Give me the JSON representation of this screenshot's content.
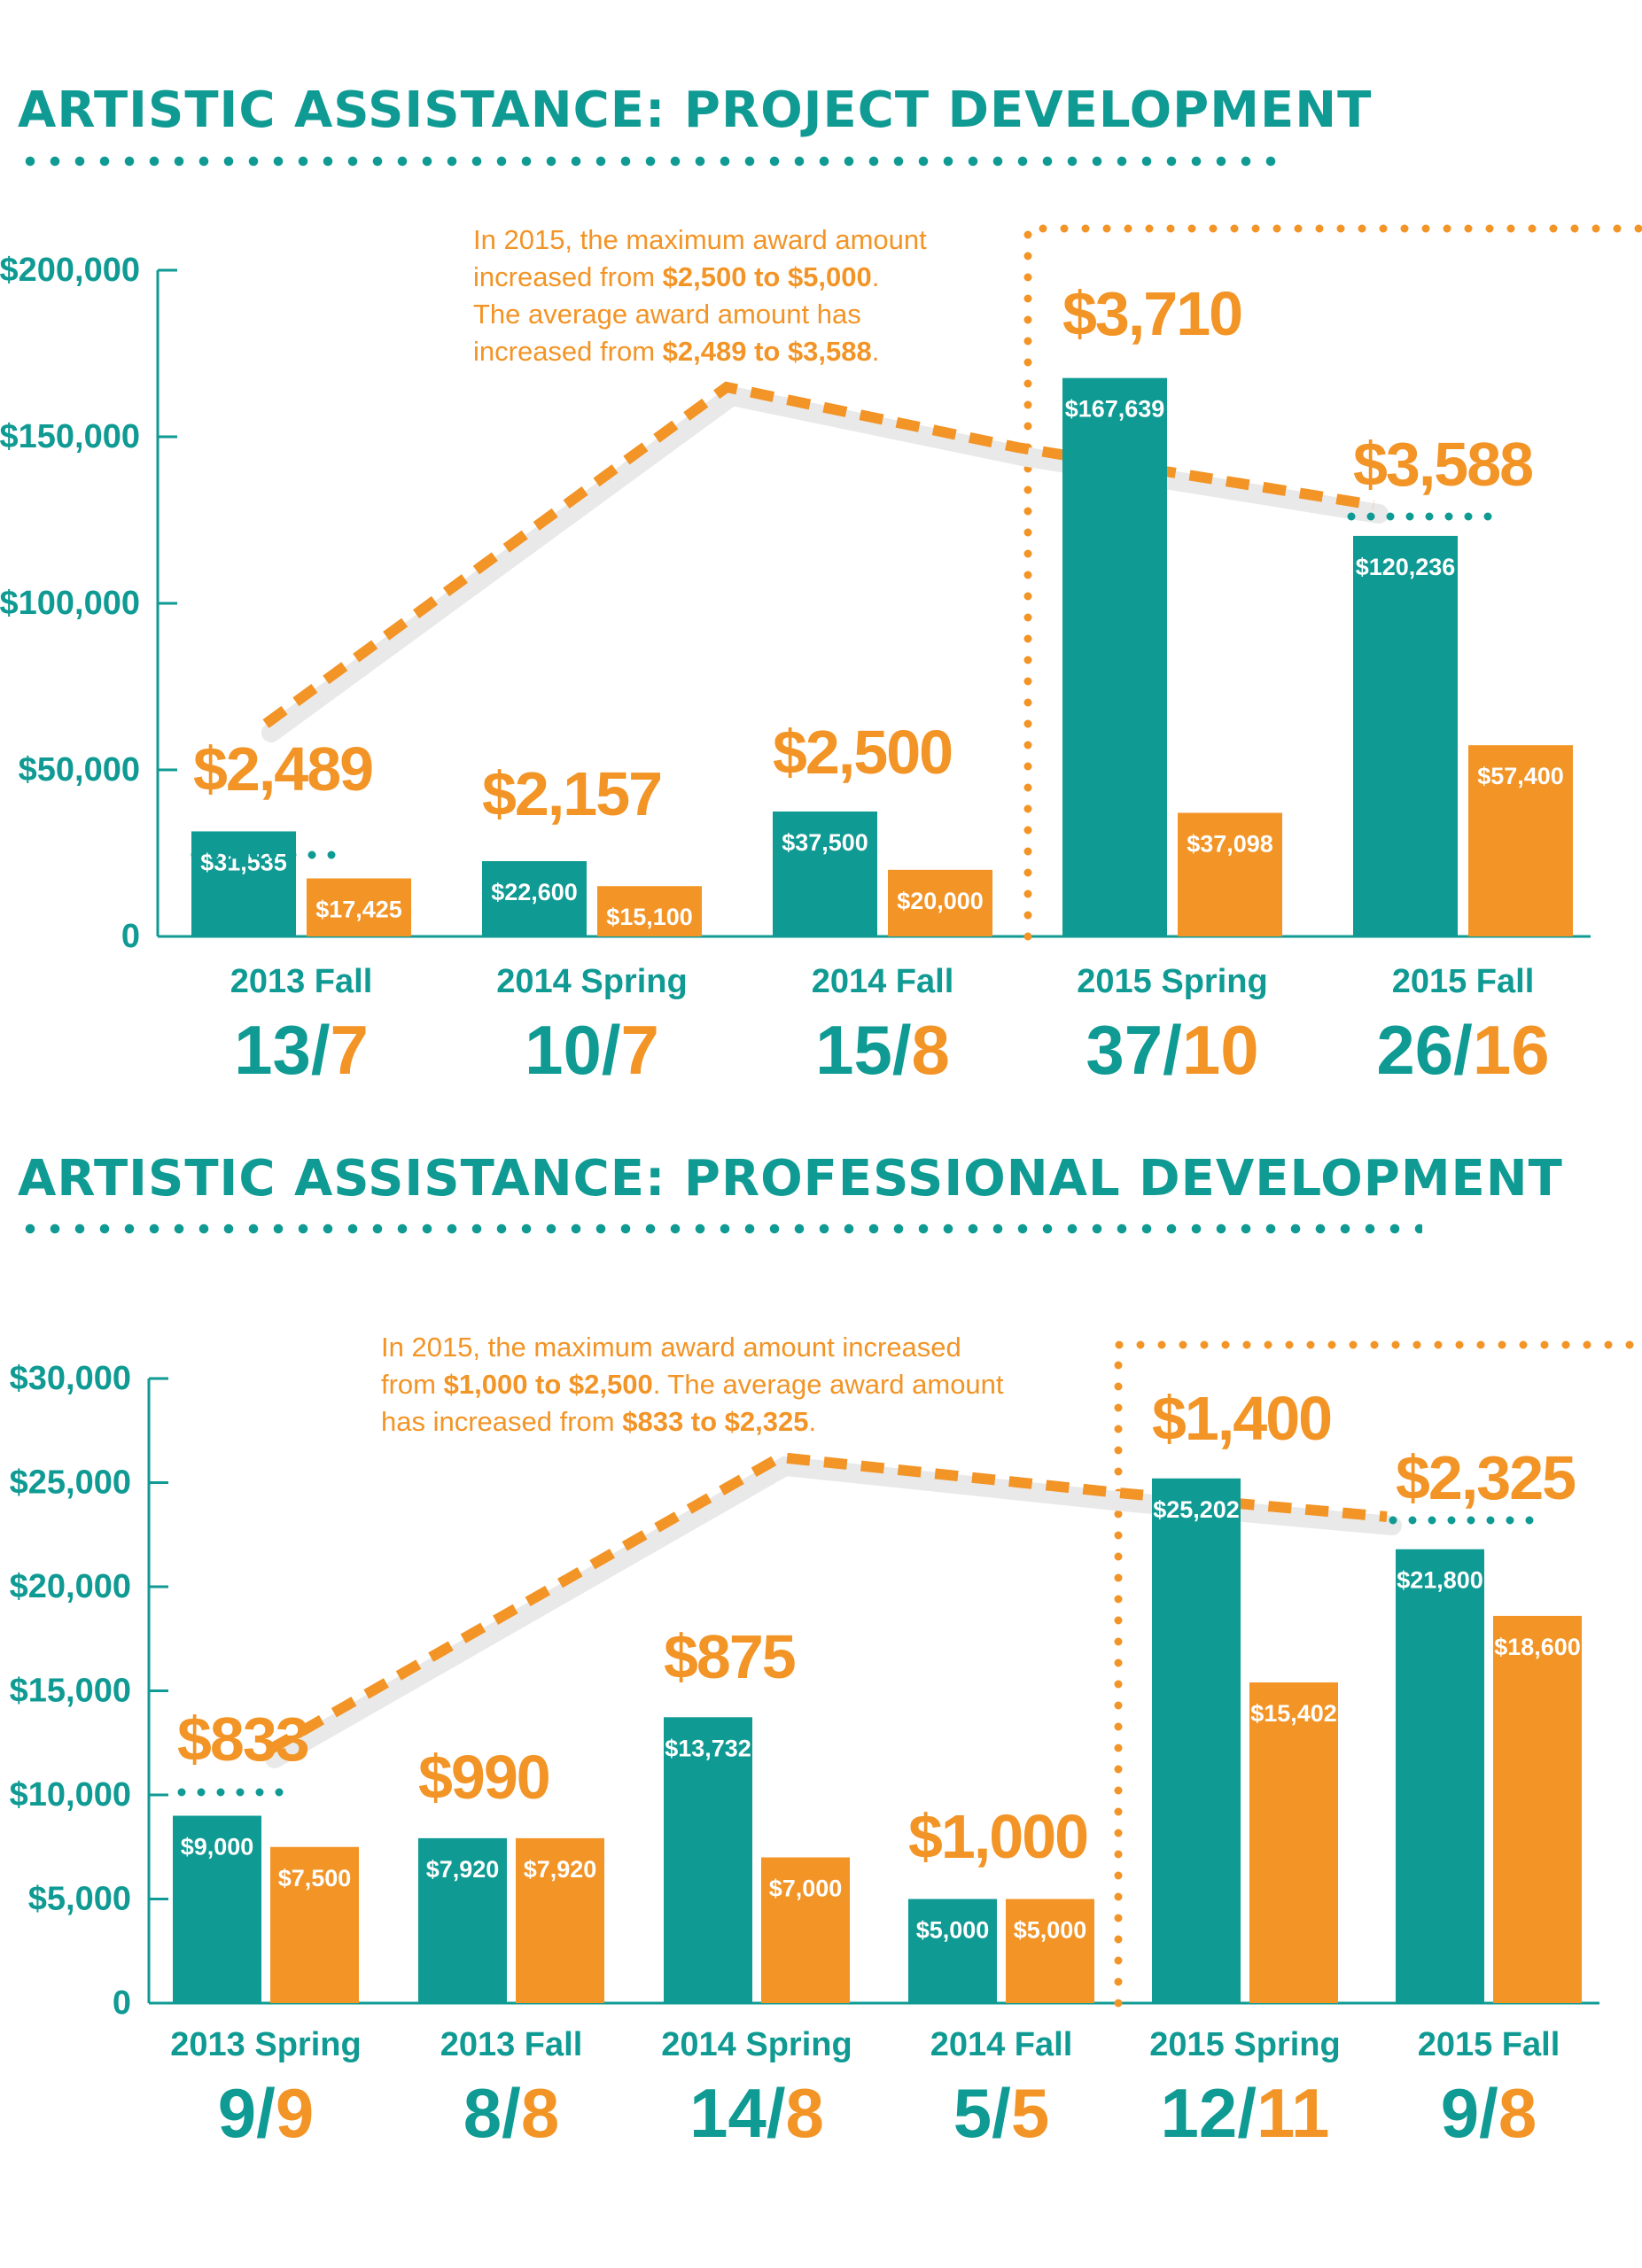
{
  "colors": {
    "teal": "#0f9a93",
    "orange": "#f29426"
  },
  "chart_data": [
    {
      "type": "bar",
      "title": "ARTISTIC ASSISTANCE: PROJECT DEVELOPMENT",
      "ylim": [
        0,
        200000
      ],
      "ytick_values": [
        0,
        50000,
        100000,
        150000,
        200000
      ],
      "ytick_labels": [
        "0",
        "$50,000",
        "$100,000",
        "$150,000",
        "$200,000"
      ],
      "categories": [
        "2013 Fall",
        "2014 Spring",
        "2014 Fall",
        "2015 Spring",
        "2015 Fall"
      ],
      "series": [
        {
          "values": [
            31535,
            22600,
            37500,
            167639,
            120236
          ],
          "labels": [
            "$31,535",
            "$22,600",
            "$37,500",
            "$167,639",
            "$120,236"
          ]
        },
        {
          "values": [
            17425,
            15100,
            20000,
            37098,
            57400
          ],
          "labels": [
            "$17,425",
            "$15,100",
            "$20,000",
            "$37,098",
            "$57,400"
          ]
        }
      ],
      "avg_awards": [
        "$2,489",
        "$2,157",
        "$2,500",
        "$3,710",
        "$3,588"
      ],
      "counts": [
        {
          "a": "13",
          "b": "7"
        },
        {
          "a": "10",
          "b": "7"
        },
        {
          "a": "15",
          "b": "8"
        },
        {
          "a": "37",
          "b": "10"
        },
        {
          "a": "26",
          "b": "16"
        }
      ],
      "note": {
        "prefix1": "In 2015, the maximum award amount",
        "mid1": "increased from ",
        "bold1": "$2,500 to $5,000",
        "end1": ".",
        "line3": "The average award amount has",
        "mid2": "increased from ",
        "bold2": "$2,489 to $3,588",
        "end2": "."
      }
    },
    {
      "type": "bar",
      "title": "ARTISTIC ASSISTANCE: PROFESSIONAL DEVELOPMENT",
      "ylim": [
        0,
        30000
      ],
      "ytick_values": [
        0,
        5000,
        10000,
        15000,
        20000,
        25000,
        30000
      ],
      "ytick_labels": [
        "0",
        "$5,000",
        "$10,000",
        "$15,000",
        "$20,000",
        "$25,000",
        "$30,000"
      ],
      "categories": [
        "2013 Spring",
        "2013 Fall",
        "2014 Spring",
        "2014 Fall",
        "2015 Spring",
        "2015 Fall"
      ],
      "series": [
        {
          "values": [
            9000,
            7920,
            13732,
            5000,
            25202,
            21800
          ],
          "labels": [
            "$9,000",
            "$7,920",
            "$13,732",
            "$5,000",
            "$25,202",
            "$21,800"
          ]
        },
        {
          "values": [
            7500,
            7920,
            7000,
            5000,
            15402,
            18600
          ],
          "labels": [
            "$7,500",
            "$7,920",
            "$7,000",
            "$5,000",
            "$15,402",
            "$18,600"
          ]
        }
      ],
      "avg_awards": [
        "$833",
        "$990",
        "$875",
        "$1,000",
        "$1,400",
        "$2,325"
      ],
      "counts": [
        {
          "a": "9",
          "b": "9"
        },
        {
          "a": "8",
          "b": "8"
        },
        {
          "a": "14",
          "b": "8"
        },
        {
          "a": "5",
          "b": "5"
        },
        {
          "a": "12",
          "b": "11"
        },
        {
          "a": "9",
          "b": "8"
        }
      ],
      "note": {
        "prefix1": "In 2015, the maximum award amount increased",
        "mid1": "from ",
        "bold1": "$1,000 to $2,500",
        "end1": ". The average award amount",
        "line3": "",
        "mid2": "has increased from ",
        "bold2": "$833 to $2,325",
        "end2": "."
      }
    }
  ]
}
